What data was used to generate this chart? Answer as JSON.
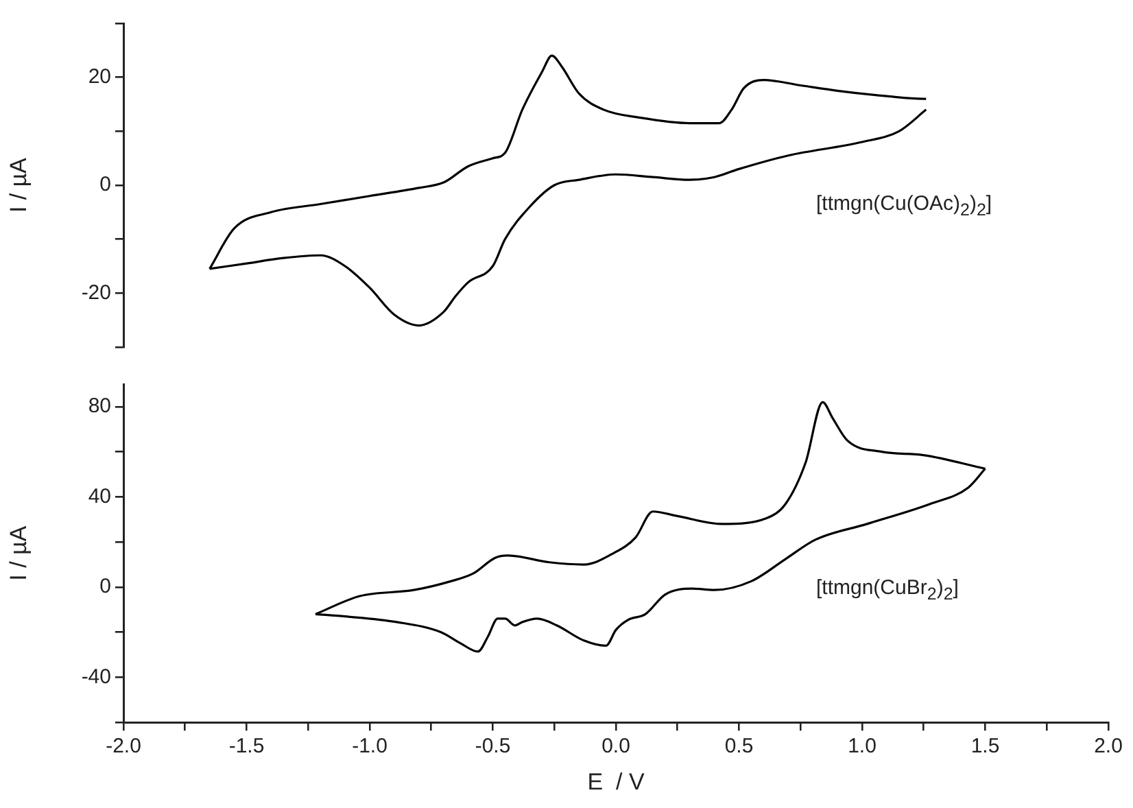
{
  "chart_data": [
    {
      "type": "line",
      "ylabel": "I / µA",
      "annotations": [
        "[ttmgn(Cu(OAc)$_{2}$)$_{2}$]"
      ],
      "xlim": [
        -2,
        2
      ],
      "ylim": [
        -30,
        30
      ],
      "yticks": [
        {
          "value": -30,
          "label": null
        },
        -20,
        {
          "value": -10,
          "label": null
        },
        0,
        {
          "value": 10,
          "label": null
        },
        20,
        {
          "value": 30,
          "label": null
        }
      ],
      "tick_labels": "y",
      "grid": false,
      "legend": false,
      "marker": "none",
      "series": [
        {
          "color": "#000000",
          "x": [
            -1.65,
            -1.55,
            -1.4,
            -1.2,
            -1.0,
            -0.8,
            -0.7,
            -0.6,
            -0.5,
            -0.45,
            -0.38,
            -0.3,
            -0.26,
            -0.22,
            -0.15,
            -0.05,
            0.1,
            0.3,
            0.42,
            0.47,
            0.52,
            0.6,
            0.75,
            0.9,
            1.1,
            1.25,
            1.26
          ],
          "values": [
            -15.5,
            -8,
            -5,
            -3.5,
            -2,
            -0.5,
            0.5,
            3.5,
            5,
            6,
            14,
            21,
            24,
            22,
            17,
            14,
            12.5,
            11.5,
            11.5,
            14,
            18,
            19.5,
            18.5,
            17.5,
            16.5,
            16,
            16
          ]
        },
        {
          "color": "#000000",
          "x": [
            -1.65,
            -1.5,
            -1.35,
            -1.2,
            -1.1,
            -1.0,
            -0.9,
            -0.8,
            -0.7,
            -0.65,
            -0.6,
            -0.5,
            -0.45,
            -0.35,
            -0.25,
            -0.15,
            0.0,
            0.15,
            0.3,
            0.4,
            0.5,
            0.7,
            1.0,
            1.15,
            1.26
          ],
          "values": [
            -15.5,
            -14.5,
            -13.5,
            -13,
            -15,
            -19,
            -24,
            -26,
            -23.5,
            -20.5,
            -18,
            -15,
            -10,
            -4,
            0,
            1,
            2,
            1.5,
            1,
            1.5,
            3,
            5.5,
            8,
            10,
            14
          ]
        }
      ]
    },
    {
      "type": "line",
      "xlabel": "E  / V",
      "ylabel": "I / µA",
      "annotations": [
        "[ttmgn(CuBr$_{2}$)$_{2}$]"
      ],
      "xlim": [
        -2,
        2
      ],
      "xticks": [
        {
          "value": -2,
          "label": "-2.0"
        },
        {
          "value": -1.75,
          "label": null
        },
        {
          "value": -1.5,
          "label": "-1.5"
        },
        {
          "value": -1.25,
          "label": null
        },
        {
          "value": -1,
          "label": "-1.0"
        },
        {
          "value": -0.75,
          "label": null
        },
        -0.5,
        {
          "value": -0.25,
          "label": null
        },
        {
          "value": 0,
          "label": "0.0"
        },
        {
          "value": 0.25,
          "label": null
        },
        0.5,
        {
          "value": 0.75,
          "label": null
        },
        {
          "value": 1,
          "label": "1.0"
        },
        {
          "value": 1.25,
          "label": null
        },
        1.5,
        {
          "value": 1.75,
          "label": null
        },
        {
          "value": 2,
          "label": "2.0"
        }
      ],
      "ylim": [
        -60,
        90
      ],
      "yticks": [
        {
          "value": -60,
          "label": null
        },
        -40,
        {
          "value": -20,
          "label": null
        },
        0,
        {
          "value": 20,
          "label": null
        },
        40,
        {
          "value": 60,
          "label": null
        },
        80
      ],
      "grid": false,
      "legend": false,
      "marker": "none",
      "series": [
        {
          "color": "#000000",
          "x": [
            -1.22,
            -1.04,
            -0.82,
            -0.67,
            -0.58,
            -0.49,
            -0.44,
            -0.27,
            -0.13,
            -0.01,
            0.08,
            0.15,
            0.25,
            0.43,
            0.61,
            0.69,
            0.77,
            0.84,
            0.88,
            0.94,
            1.08,
            1.25,
            1.5
          ],
          "values": [
            -12,
            -4,
            -1.3,
            2.6,
            6,
            13,
            14,
            11,
            10,
            15,
            22,
            33.5,
            31.5,
            28,
            30.5,
            37,
            55,
            82,
            75,
            65,
            60,
            58.5,
            52.5
          ]
        },
        {
          "color": "#000000",
          "x": [
            -1.22,
            -1.1,
            -0.89,
            -0.71,
            -0.63,
            -0.56,
            -0.52,
            -0.48,
            -0.45,
            -0.41,
            -0.38,
            -0.32,
            -0.24,
            -0.13,
            -0.04,
            0.0,
            0.05,
            0.12,
            0.2,
            0.31,
            0.4,
            0.55,
            0.69,
            0.81,
            1.02,
            1.28,
            1.43,
            1.5
          ],
          "values": [
            -12,
            -13,
            -15.5,
            -20,
            -25,
            -28.6,
            -22,
            -14,
            -14,
            -17,
            -15.5,
            -14,
            -17,
            -23.7,
            -26,
            -19,
            -14.5,
            -12,
            -3.3,
            -0.7,
            -1.3,
            2.6,
            12.5,
            21,
            28,
            37,
            44,
            52.5
          ]
        }
      ]
    }
  ]
}
